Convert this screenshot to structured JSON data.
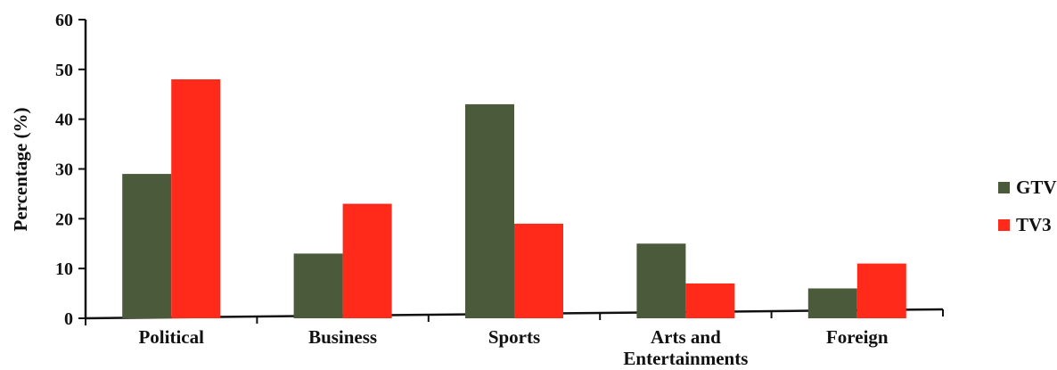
{
  "chart_data": {
    "type": "bar",
    "title": "",
    "xlabel": "",
    "ylabel": "Percentage (%)",
    "ylim": [
      0,
      60
    ],
    "yticks": [
      0,
      10,
      20,
      30,
      40,
      50,
      60
    ],
    "categories": [
      "Political",
      "Business",
      "Sports",
      "Arts and Entertainments",
      "Foreign"
    ],
    "category_lines": [
      [
        "Political"
      ],
      [
        "Business"
      ],
      [
        "Sports"
      ],
      [
        "Arts and",
        "Entertainments"
      ],
      [
        "Foreign"
      ]
    ],
    "series": [
      {
        "name": "GTV",
        "color": "#4a5a3a",
        "values": [
          29,
          13,
          43,
          15,
          6
        ]
      },
      {
        "name": "TV3",
        "color": "#ff2a1a",
        "values": [
          48,
          23,
          19,
          7,
          11
        ]
      }
    ],
    "legend_position": "right",
    "grid": false
  }
}
